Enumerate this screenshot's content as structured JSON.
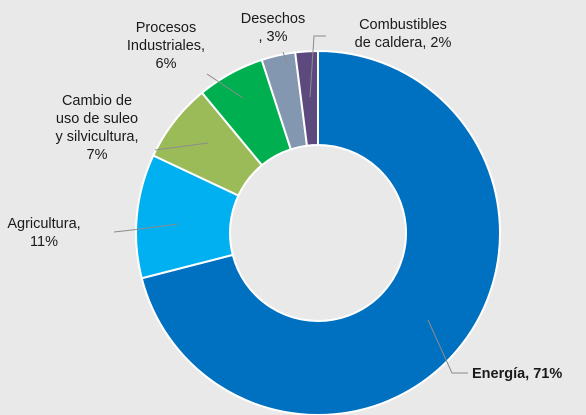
{
  "chart_data": {
    "type": "pie",
    "variant": "donut",
    "title": "",
    "legend": "none",
    "series": [
      {
        "slices": [
          {
            "label_lines": [
              "Energía, 71%"
            ],
            "value": 71,
            "color": "#0070c0",
            "bold": true
          },
          {
            "label_lines": [
              "Agricultura,",
              "11%"
            ],
            "value": 11,
            "color": "#00b0f0",
            "bold": false
          },
          {
            "label_lines": [
              "Cambio de",
              "uso de suleo",
              "y silvicultura,",
              "7%"
            ],
            "value": 7,
            "color": "#9bbb59",
            "bold": false
          },
          {
            "label_lines": [
              "Procesos",
              "Industriales,",
              "6%"
            ],
            "value": 6,
            "color": "#00b050",
            "bold": false
          },
          {
            "label_lines": [
              "Desechos",
              ", 3%"
            ],
            "value": 3,
            "color": "#8497b0",
            "bold": false
          },
          {
            "label_lines": [
              "Combustibles",
              "de caldera, 2%"
            ],
            "value": 2,
            "color": "#5c4a7f",
            "bold": false
          }
        ]
      }
    ]
  }
}
